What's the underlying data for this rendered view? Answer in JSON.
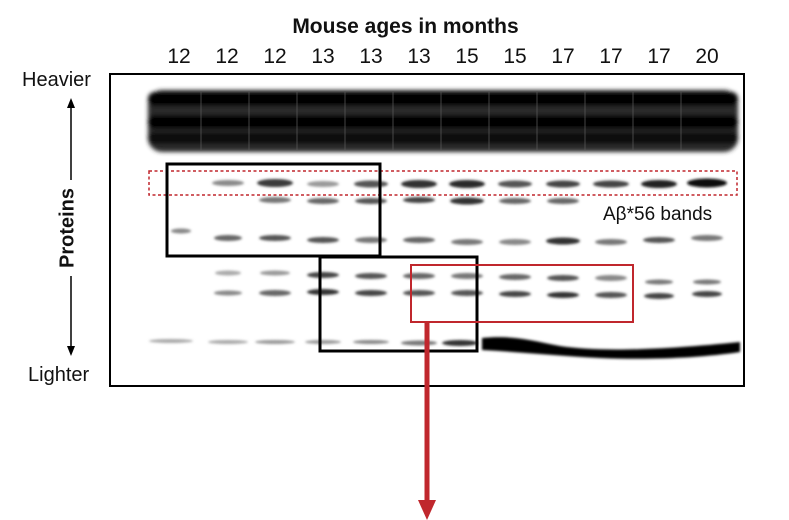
{
  "title": "Mouse ages in months",
  "ages": [
    "12",
    "12",
    "12",
    "13",
    "13",
    "13",
    "15",
    "15",
    "17",
    "17",
    "17",
    "20"
  ],
  "labels": {
    "heavier": "Heavier",
    "lighter": "Lighter",
    "proteins": "Proteins",
    "ab56_bands": "Aβ*56 bands"
  },
  "colors": {
    "box_black": "#000000",
    "box_red": "#c0272d",
    "dashed_red": "#c0272d",
    "arrow_red": "#c0272d",
    "band": "#111111"
  }
}
